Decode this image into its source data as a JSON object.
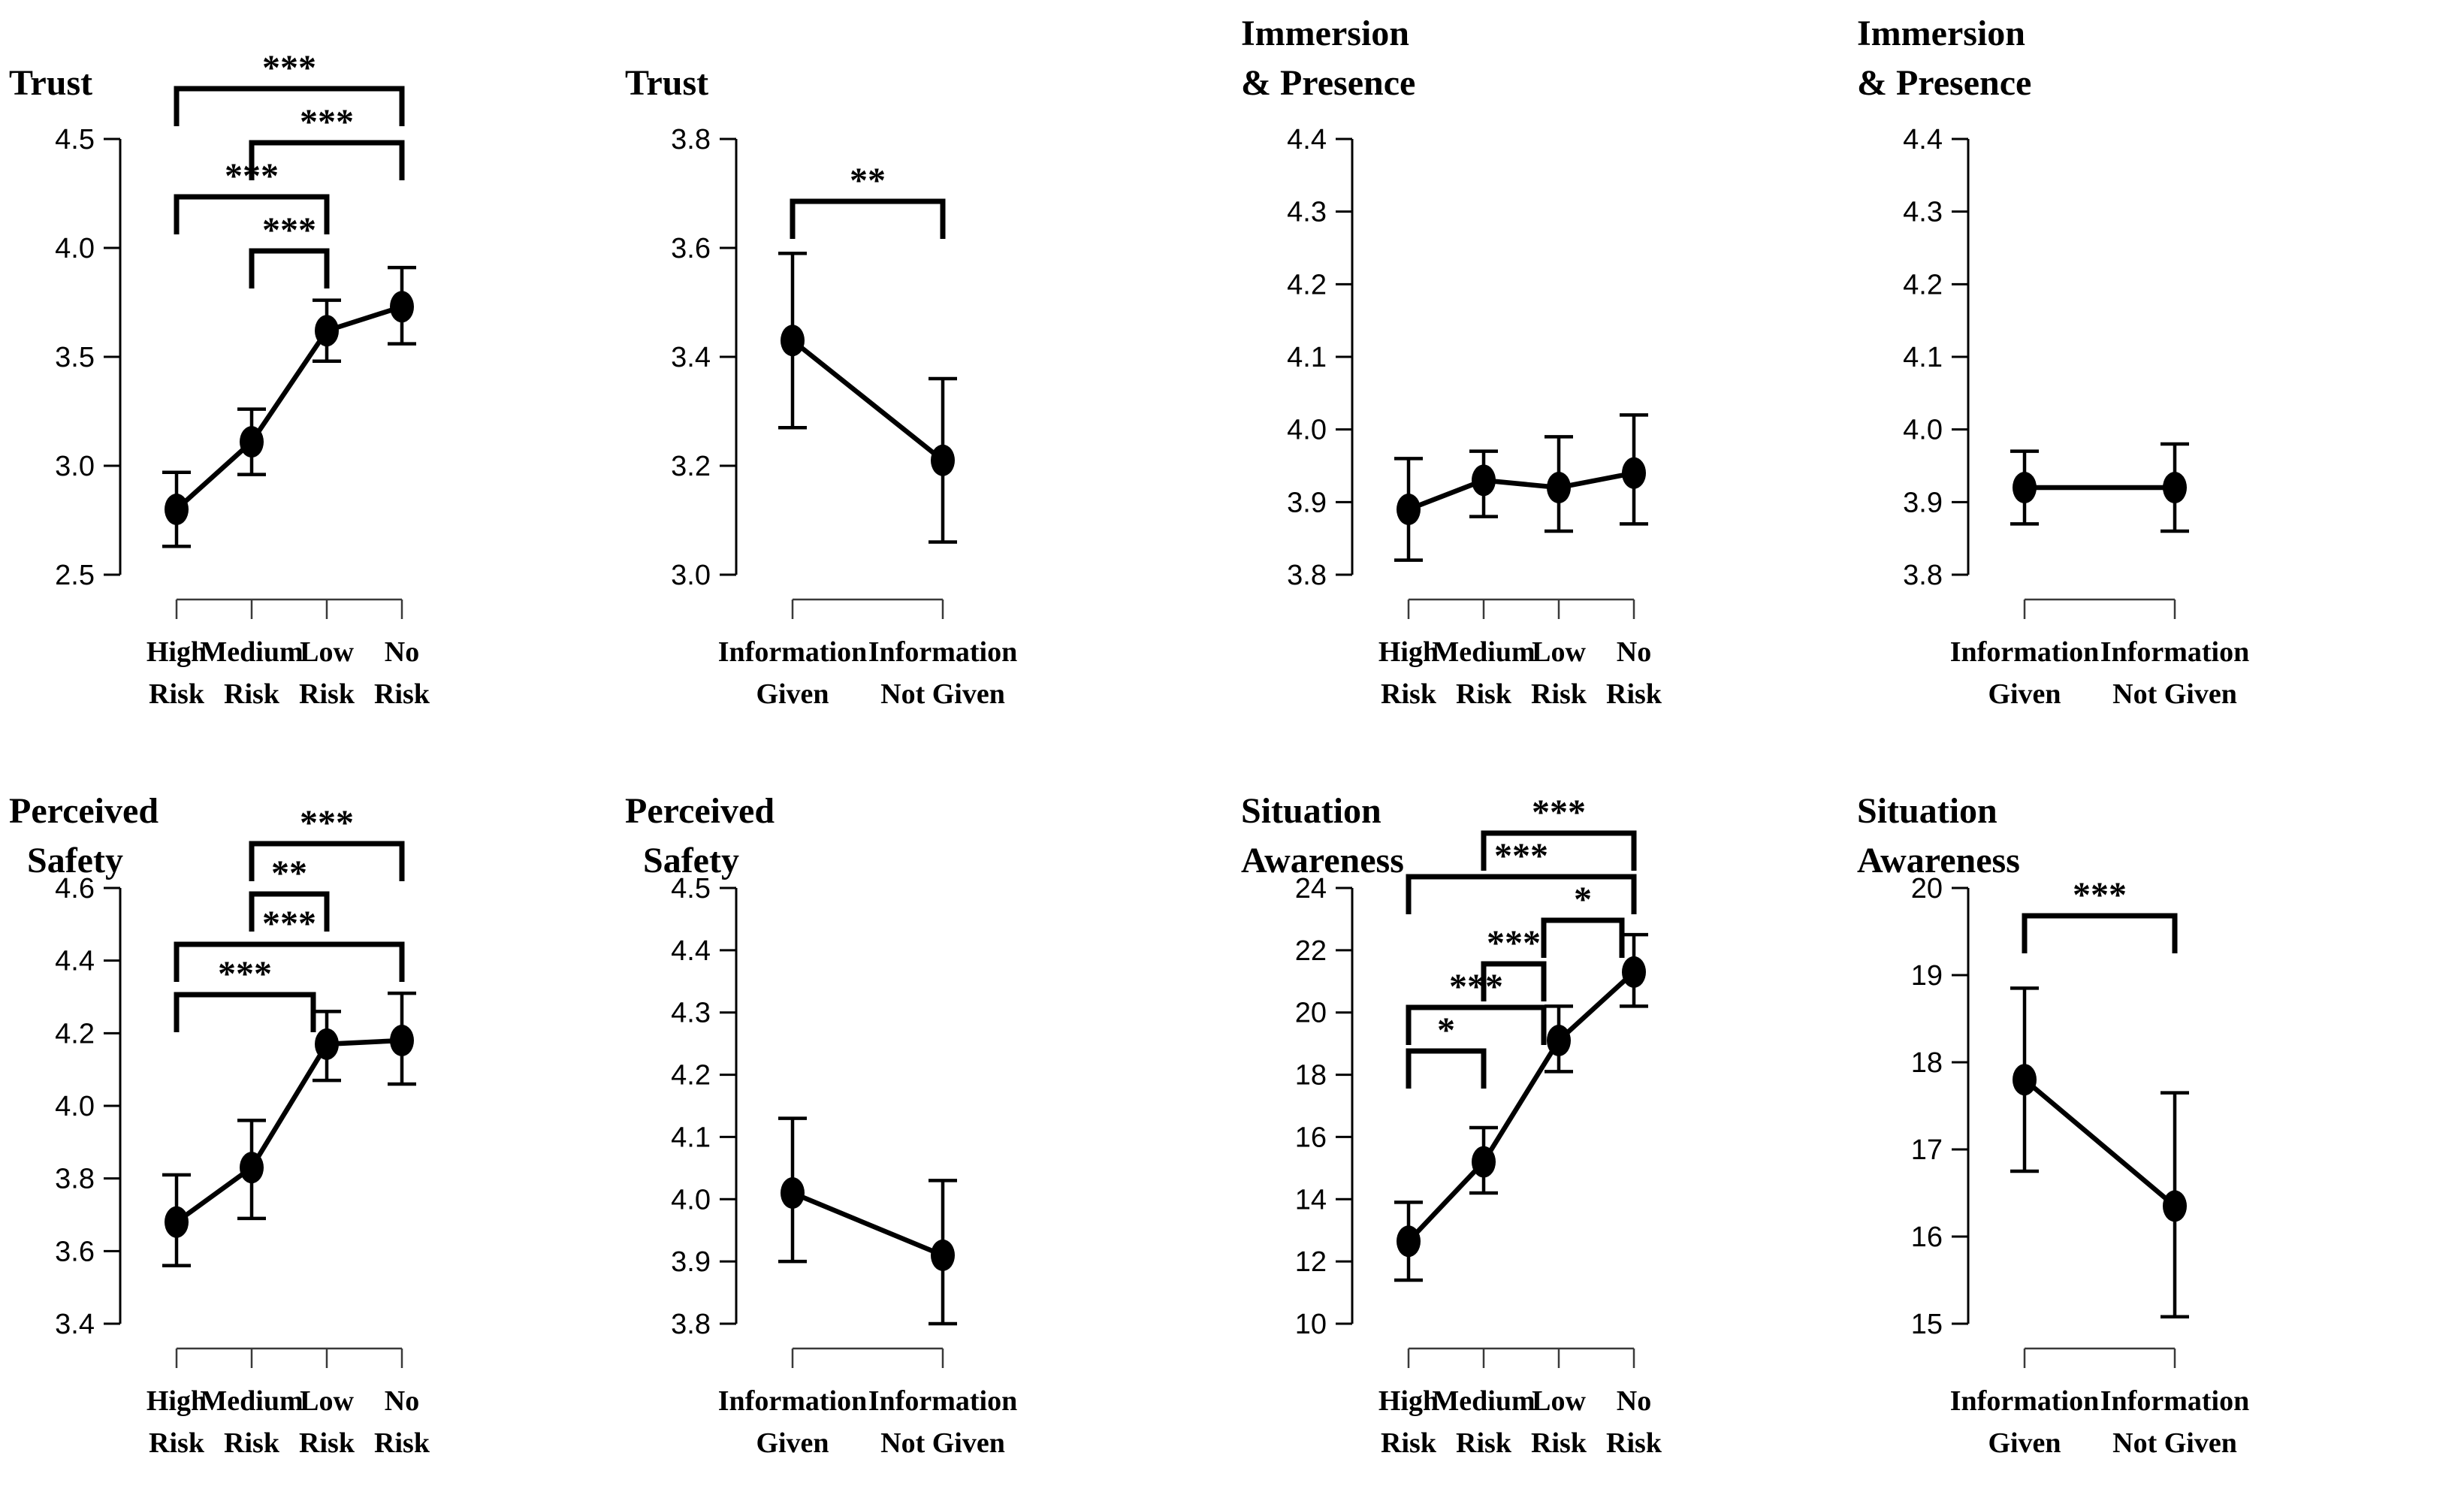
{
  "figure": {
    "background": "#ffffff",
    "ink": "#000000",
    "layout": "2 rows x 4 columns of error-bar line plots",
    "significance_legend": [
      "*",
      "**",
      "***"
    ]
  },
  "chart_data": [
    {
      "id": "trust-by-risk",
      "type": "line",
      "title": "Trust",
      "categories": [
        [
          "High",
          "Risk"
        ],
        [
          "Medium",
          "Risk"
        ],
        [
          "Low",
          "Risk"
        ],
        [
          "No",
          "Risk"
        ]
      ],
      "means": [
        2.8,
        3.11,
        3.62,
        3.73
      ],
      "ci_low": [
        2.63,
        2.96,
        3.48,
        3.56
      ],
      "ci_high": [
        2.97,
        3.26,
        3.76,
        3.91
      ],
      "ylim": [
        2.5,
        4.5
      ],
      "yticks": [
        2.5,
        3.0,
        3.5,
        4.0,
        4.5
      ],
      "ytick_labels": [
        "2.5",
        "3.0",
        "3.5",
        "4.0",
        "4.5"
      ],
      "significance": [
        {
          "pair": [
            0,
            3
          ],
          "label": "***"
        },
        {
          "pair": [
            1,
            3
          ],
          "label": "***"
        },
        {
          "pair": [
            0,
            2
          ],
          "label": "***"
        },
        {
          "pair": [
            1,
            2
          ],
          "label": "***"
        }
      ],
      "sig_top": 118,
      "sig_step": 72
    },
    {
      "id": "trust-by-information",
      "type": "line",
      "title": "Trust",
      "categories": [
        [
          "Information",
          "Given"
        ],
        [
          "Information",
          "Not Given"
        ]
      ],
      "means": [
        3.43,
        3.21
      ],
      "ci_low": [
        3.27,
        3.06
      ],
      "ci_high": [
        3.59,
        3.36
      ],
      "ylim": [
        3.0,
        3.8
      ],
      "yticks": [
        3.0,
        3.2,
        3.4,
        3.6,
        3.8
      ],
      "ytick_labels": [
        "3.0",
        "3.2",
        "3.4",
        "3.6",
        "3.8"
      ],
      "significance": [
        {
          "pair": [
            0,
            1
          ],
          "label": "**"
        }
      ],
      "sig_top": 268,
      "sig_step": 72
    },
    {
      "id": "immersion-presence-by-risk",
      "type": "line",
      "title": "Immersion\n& Presence",
      "categories": [
        [
          "High",
          "Risk"
        ],
        [
          "Medium",
          "Risk"
        ],
        [
          "Low",
          "Risk"
        ],
        [
          "No",
          "Risk"
        ]
      ],
      "means": [
        3.89,
        3.93,
        3.92,
        3.94
      ],
      "ci_low": [
        3.82,
        3.88,
        3.86,
        3.87
      ],
      "ci_high": [
        3.96,
        3.97,
        3.99,
        4.02
      ],
      "ylim": [
        3.8,
        4.4
      ],
      "yticks": [
        3.8,
        3.9,
        4.0,
        4.1,
        4.2,
        4.3,
        4.4
      ],
      "ytick_labels": [
        "3.8",
        "3.9",
        "4.0",
        "4.1",
        "4.2",
        "4.3",
        "4.4"
      ],
      "significance": [],
      "sig_top": 120,
      "sig_step": 70
    },
    {
      "id": "immersion-presence-by-information",
      "type": "line",
      "title": "Immersion\n& Presence",
      "categories": [
        [
          "Information",
          "Given"
        ],
        [
          "Information",
          "Not Given"
        ]
      ],
      "means": [
        3.92,
        3.92
      ],
      "ci_low": [
        3.87,
        3.86
      ],
      "ci_high": [
        3.97,
        3.98
      ],
      "ylim": [
        3.8,
        4.4
      ],
      "yticks": [
        3.8,
        3.9,
        4.0,
        4.1,
        4.2,
        4.3,
        4.4
      ],
      "ytick_labels": [
        "3.8",
        "3.9",
        "4.0",
        "4.1",
        "4.2",
        "4.3",
        "4.4"
      ],
      "significance": [],
      "sig_top": 120,
      "sig_step": 70
    },
    {
      "id": "perceived-safety-by-risk",
      "type": "line",
      "title": "Perceived\n  Safety",
      "categories": [
        [
          "High",
          "Risk"
        ],
        [
          "Medium",
          "Risk"
        ],
        [
          "Low",
          "Risk"
        ],
        [
          "No",
          "Risk"
        ]
      ],
      "means": [
        3.68,
        3.83,
        4.17,
        4.18
      ],
      "ci_low": [
        3.56,
        3.69,
        4.07,
        4.06
      ],
      "ci_high": [
        3.81,
        3.96,
        4.26,
        4.31
      ],
      "ylim": [
        3.4,
        4.6
      ],
      "yticks": [
        3.4,
        3.6,
        3.8,
        4.0,
        4.2,
        4.4,
        4.6
      ],
      "ytick_labels": [
        "3.4",
        "3.6",
        "3.8",
        "4.0",
        "4.2",
        "4.4",
        "4.6"
      ],
      "significance": [
        {
          "pair": [
            1,
            3
          ],
          "label": "***"
        },
        {
          "pair": [
            1,
            2
          ],
          "label": "**"
        },
        {
          "pair": [
            0,
            3
          ],
          "label": "***"
        },
        {
          "pair": [
            0,
            2
          ],
          "label": "***",
          "dx": [
            0,
            -18
          ]
        }
      ],
      "sig_top": 126,
      "sig_step": 67
    },
    {
      "id": "perceived-safety-by-information",
      "type": "line",
      "title": "Perceived\n  Safety",
      "categories": [
        [
          "Information",
          "Given"
        ],
        [
          "Information",
          "Not Given"
        ]
      ],
      "means": [
        4.01,
        3.91
      ],
      "ci_low": [
        3.9,
        3.8
      ],
      "ci_high": [
        4.13,
        4.03
      ],
      "ylim": [
        3.8,
        4.5
      ],
      "yticks": [
        3.8,
        3.9,
        4.0,
        4.1,
        4.2,
        4.3,
        4.4,
        4.5
      ],
      "ytick_labels": [
        "3.8",
        "3.9",
        "4.0",
        "4.1",
        "4.2",
        "4.3",
        "4.4",
        "4.5"
      ],
      "significance": [],
      "sig_top": 120,
      "sig_step": 70
    },
    {
      "id": "situation-awareness-by-risk",
      "type": "line",
      "title": "Situation\nAwareness",
      "categories": [
        [
          "High",
          "Risk"
        ],
        [
          "Medium",
          "Risk"
        ],
        [
          "Low",
          "Risk"
        ],
        [
          "No",
          "Risk"
        ]
      ],
      "means": [
        12.65,
        15.2,
        19.1,
        21.3
      ],
      "ci_low": [
        11.4,
        14.2,
        18.1,
        20.2
      ],
      "ci_high": [
        13.9,
        16.3,
        20.2,
        22.5
      ],
      "ylim": [
        10,
        24
      ],
      "yticks": [
        10,
        12,
        14,
        16,
        18,
        20,
        22,
        24
      ],
      "ytick_labels": [
        "10",
        "12",
        "14",
        "16",
        "18",
        "20",
        "22",
        "24"
      ],
      "significance": [
        {
          "pair": [
            1,
            3
          ],
          "label": "***"
        },
        {
          "pair": [
            0,
            3
          ],
          "label": "***"
        },
        {
          "pair": [
            2,
            3
          ],
          "label": "*",
          "dx": [
            -20,
            -16
          ]
        },
        {
          "pair": [
            1,
            2
          ],
          "label": "***",
          "dx": [
            0,
            -20
          ]
        },
        {
          "pair": [
            0,
            2
          ],
          "label": "***",
          "dx": [
            0,
            -20
          ]
        },
        {
          "pair": [
            0,
            1
          ],
          "label": "*"
        }
      ],
      "sig_top": 112,
      "sig_step": 58
    },
    {
      "id": "situation-awareness-by-information",
      "type": "line",
      "title": "Situation\nAwareness",
      "categories": [
        [
          "Information",
          "Given"
        ],
        [
          "Information",
          "Not Given"
        ]
      ],
      "means": [
        17.8,
        16.35
      ],
      "ci_low": [
        16.75,
        15.08
      ],
      "ci_high": [
        18.85,
        17.65
      ],
      "ylim": [
        15,
        20
      ],
      "yticks": [
        15,
        16,
        17,
        18,
        19,
        20
      ],
      "ytick_labels": [
        "15",
        "16",
        "17",
        "18",
        "19",
        "20"
      ],
      "significance": [
        {
          "pair": [
            0,
            1
          ],
          "label": "***"
        }
      ],
      "sig_top": 222,
      "sig_step": 72
    }
  ]
}
